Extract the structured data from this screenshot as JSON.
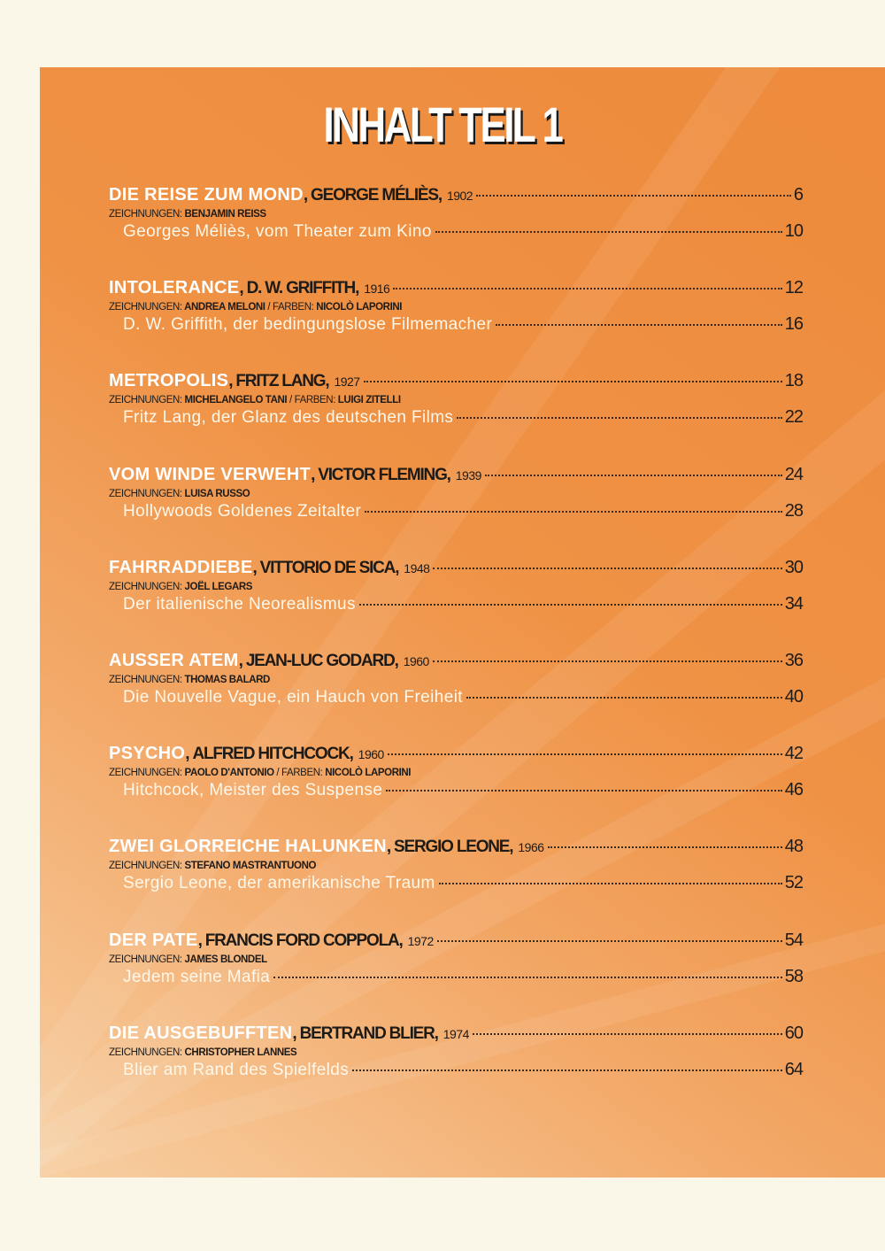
{
  "title": "INHALT TEIL 1",
  "labels": {
    "drawings": "ZEICHNUNGEN:",
    "colors": "FARBEN:"
  },
  "entries": [
    {
      "film": "DIE REISE ZUM MOND",
      "director": "GEORGE MÉLIÈS",
      "year": "1902",
      "page": "6",
      "drawings": "BENJAMIN REISS",
      "colors": null,
      "essay": "Georges Méliès, vom Theater zum Kino",
      "essay_page": "10"
    },
    {
      "film": "INTOLERANCE",
      "director": "D. W. GRIFFITH",
      "year": "1916",
      "page": "12",
      "drawings": "ANDREA MELONI",
      "colors": "NICOLÒ LAPORINI",
      "essay": "D. W. Griffith, der bedingungslose Filmemacher",
      "essay_page": "16"
    },
    {
      "film": "METROPOLIS",
      "director": "FRITZ LANG",
      "year": "1927",
      "page": "18",
      "drawings": "MICHELANGELO TANI",
      "colors": "LUIGI ZITELLI",
      "essay": "Fritz Lang, der Glanz des deutschen Films",
      "essay_page": "22"
    },
    {
      "film": "VOM WINDE VERWEHT",
      "director": "VICTOR FLEMING",
      "year": "1939",
      "page": "24",
      "drawings": "LUISA RUSSO",
      "colors": null,
      "essay": "Hollywoods Goldenes Zeitalter",
      "essay_page": "28"
    },
    {
      "film": "FAHRRADDIEBE",
      "director": "VITTORIO DE SICA",
      "year": "1948",
      "page": "30",
      "drawings": "JOËL LEGARS",
      "colors": null,
      "essay": "Der italienische Neorealismus",
      "essay_page": "34"
    },
    {
      "film": "AUSSER ATEM",
      "director": "JEAN-LUC GODARD",
      "year": "1960",
      "page": "36",
      "drawings": "THOMAS BALARD",
      "colors": null,
      "essay": "Die Nouvelle Vague, ein Hauch von Freiheit",
      "essay_page": "40"
    },
    {
      "film": "PSYCHO",
      "director": "ALFRED HITCHCOCK",
      "year": "1960",
      "page": "42",
      "drawings": "PAOLO D'ANTONIO",
      "colors": "NICOLÒ LAPORINI",
      "essay": "Hitchcock, Meister des Suspense",
      "essay_page": "46"
    },
    {
      "film": "ZWEI GLORREICHE HALUNKEN",
      "director": "SERGIO LEONE",
      "year": "1966",
      "page": "48",
      "drawings": "STEFANO MASTRANTUONO",
      "colors": null,
      "essay": "Sergio Leone, der amerikanische Traum",
      "essay_page": "52"
    },
    {
      "film": "DER PATE",
      "director": "FRANCIS FORD COPPOLA",
      "year": "1972",
      "page": "54",
      "drawings": "JAMES BLONDEL",
      "colors": null,
      "essay": "Jedem seine Mafia",
      "essay_page": "58"
    },
    {
      "film": "DIE AUSGEBUFFTEN",
      "director": "BERTRAND BLIER",
      "year": "1974",
      "page": "60",
      "drawings": "CHRISTOPHER LANNES",
      "colors": null,
      "essay": "Blier am Rand des Spielfelds",
      "essay_page": "64"
    }
  ]
}
